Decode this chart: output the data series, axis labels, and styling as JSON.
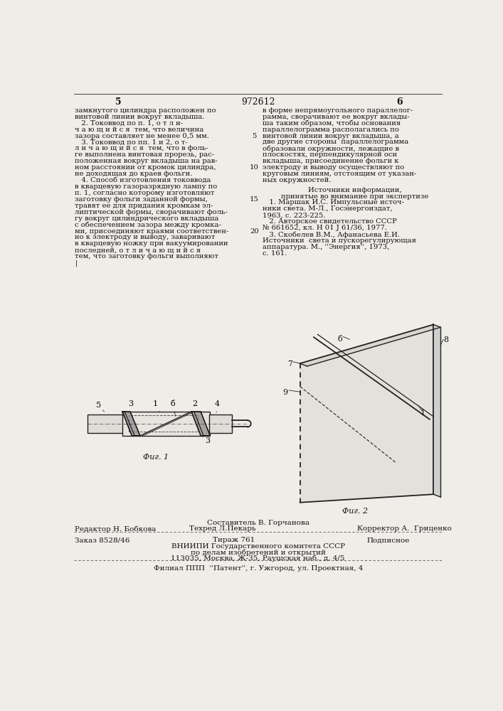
{
  "page_color": "#f0ede8",
  "text_color": "#1a1a1a",
  "title_number": "972612",
  "page_left": "5",
  "page_right": "6",
  "left_col_lines": [
    "замкнутого цилиндра расположен по",
    "винтовой линии вокруг вкладыша.",
    "   2. Токоввод по п. 1, о т л и-",
    "ч а ю щ и й с я  тем, что величина",
    "зазора составляет не менее 0,5 мм.",
    "   3. Токоввод по пп. 1 и 2, о т-",
    "л и ч а ю щ и й с я  тем, что в фоль-",
    "ге выполнена винтовая прорезь, рас-",
    "положенная вокруг вкладыша на рав-",
    "ном расстоянии от кромок цилиндра,",
    "не доходящая до краев фольги.",
    "   4. Способ изготовления токоввода",
    "в кварцевую газоразрядную лампу по",
    "п. 1, согласно которому изготовляют",
    "заготовку фольги заданной формы,",
    "травят ее для придания кромкам эл-",
    "липтической формы, сворачивают фоль-",
    "гу вокруг цилиндрического вкладыша",
    "с обеспечением зазора между кромка-",
    "ми, присоединяют краями соответствен-",
    "но к электроду и выводу, заваривают",
    "в кварцевую ножку при вакуумировании",
    "последней, о т л и ч а ю щ и й с я",
    "тем, что заготовку фольги выполняют",
    "|"
  ],
  "right_col_lines": [
    "в форме непрямоугольного параллелог-",
    "рамма, сворачивают ее вокруг вклады-",
    "ша таким образом, чтобы основания",
    "параллелограмма располагались по",
    "винтовой линии вокруг вкладыша, а",
    "две другие стороны  параллелограмма",
    "образовали окружности, лежащие в",
    "плоскостях, перпендикулярной оси",
    "вкладыша, присоединение фольги к",
    "электроду и выводу осуществляют по",
    "круговым линиям, отстоящим от указан-",
    "ных окружностей."
  ],
  "line_numbers": [
    "5",
    "10",
    "15",
    "20"
  ],
  "line_number_rows": [
    4,
    9,
    14,
    19
  ],
  "sources_header": "Источники информации,",
  "sources_subheader": "принятые во внимание при экспертизе",
  "sources_lines": [
    "   1. Маршак И.С. Импульсные источ-",
    "ники света. М-Л., Госэнергоиздат,",
    "1963, с. 223-225.",
    "   2. Авторское свидетельство СССР",
    "№ 661652, кл. Н 01 J 61/36, 1977.",
    "   3. Скобелев В.М., Афанасьева Е.И.",
    "Источники  света и пускорегулирующая",
    "аппаратура. М., ''Энергия'', 1973,",
    "с. 161."
  ],
  "fig1_label": "Фиг. 1",
  "fig2_label": "Фиг. 2",
  "footer_sestavitel": "Составитель В. Горчанова",
  "footer_redaktor": "Редактор Н. Бобкова",
  "footer_tekhred": "Техред Л.Пекарь",
  "footer_korrektor": "Корректор А.  Гриценко",
  "footer_zakaz": "Заказ 8528/46",
  "footer_tirazh": "Тираж 761",
  "footer_podpisnoe": "Подписное",
  "footer_vniip1": "ВНИИПИ Государственного комитета СССР",
  "footer_vniip2": "по делам изобретений и открытий",
  "footer_vniip3": "113035, Москва, Ж-35, Раушская наб., д. 4/5",
  "footer_filial": "Филиал ППП  ''Патент'', г. Ужгород, ул. Проектная, 4"
}
